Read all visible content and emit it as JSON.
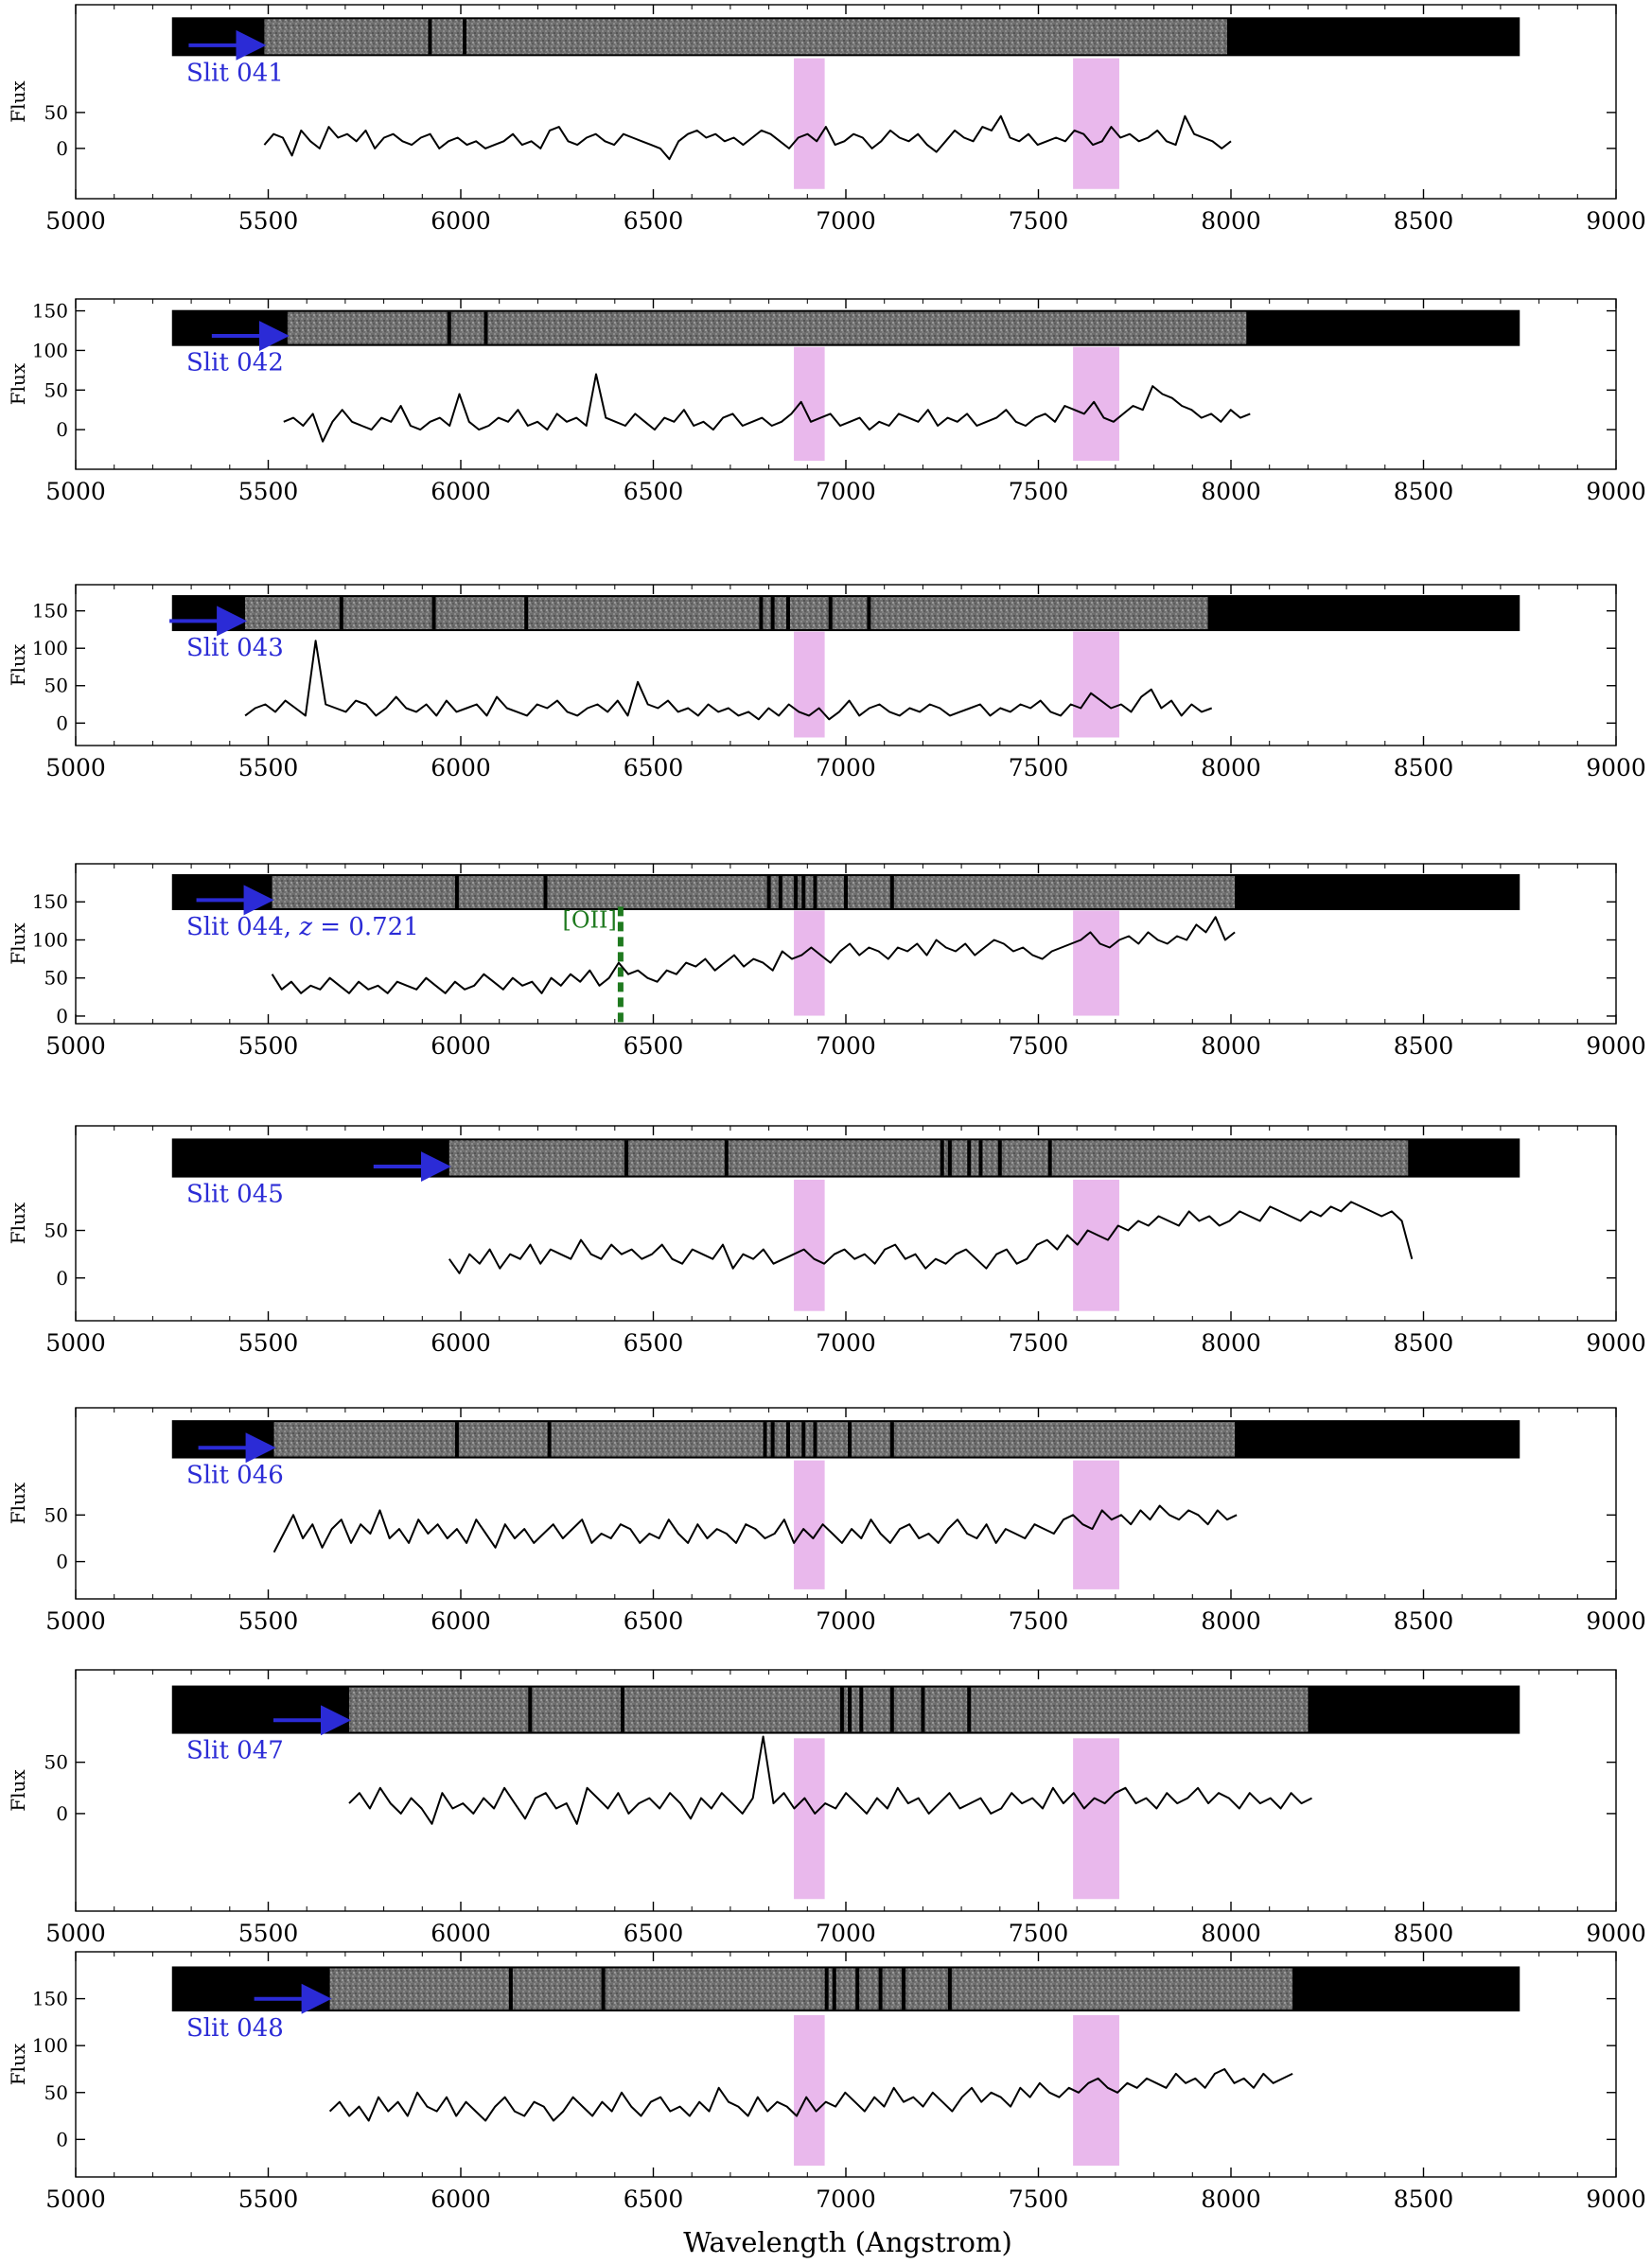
{
  "figure": {
    "xlabel": "Wavelength (Angstrom)",
    "ylabel": "Flux"
  },
  "chart_data": {
    "type": "line",
    "x_range": [
      5000,
      9000
    ],
    "x_ticks": [
      5000,
      5500,
      6000,
      6500,
      7000,
      7500,
      8000,
      8500,
      9000
    ],
    "xlabel": "Wavelength (Angstrom)",
    "ylabel": "Flux",
    "shaded_bands": [
      [
        6865,
        6945
      ],
      [
        7590,
        7710
      ]
    ],
    "band_color": "#e9b8ec",
    "line_color": "#000000",
    "label_color": "#2b2bd6",
    "annotation_color": "#1f7a1f",
    "panels": [
      {
        "label": "Slit 041",
        "x_start": 5490,
        "x_end": 8000,
        "y_range": [
          -70,
          200
        ],
        "y_ticks": [
          0,
          50
        ],
        "image_start": 5490,
        "image_end": 7990,
        "dark_columns": [
          5920,
          6010
        ],
        "spectrum": [
          5,
          20,
          15,
          -10,
          25,
          10,
          0,
          30,
          15,
          20,
          10,
          25,
          0,
          15,
          20,
          10,
          5,
          15,
          20,
          0,
          10,
          15,
          5,
          10,
          0,
          5,
          10,
          20,
          5,
          10,
          0,
          25,
          30,
          10,
          5,
          15,
          20,
          10,
          5,
          20,
          15,
          10,
          5,
          0,
          -15,
          10,
          20,
          25,
          15,
          20,
          10,
          15,
          5,
          15,
          25,
          20,
          10,
          0,
          15,
          20,
          10,
          30,
          5,
          10,
          20,
          15,
          0,
          10,
          25,
          15,
          10,
          20,
          5,
          -5,
          10,
          25,
          15,
          10,
          30,
          25,
          45,
          15,
          10,
          20,
          5,
          10,
          15,
          10,
          25,
          20,
          5,
          10,
          30,
          15,
          20,
          10,
          15,
          25,
          10,
          5,
          45,
          20,
          15,
          10,
          0,
          10
        ]
      },
      {
        "label": "Slit 042",
        "x_start": 5540,
        "x_end": 8050,
        "y_range": [
          -50,
          165
        ],
        "y_ticks": [
          0,
          50,
          100,
          150
        ],
        "image_start": 5550,
        "image_end": 8040,
        "dark_columns": [
          5970,
          6065
        ],
        "spectrum": [
          10,
          15,
          5,
          20,
          -15,
          10,
          25,
          10,
          5,
          0,
          15,
          10,
          30,
          5,
          0,
          10,
          15,
          5,
          45,
          10,
          0,
          5,
          15,
          10,
          25,
          5,
          10,
          0,
          20,
          10,
          15,
          5,
          70,
          15,
          10,
          5,
          20,
          10,
          0,
          15,
          10,
          25,
          5,
          10,
          0,
          15,
          20,
          5,
          10,
          15,
          5,
          10,
          20,
          35,
          10,
          15,
          20,
          5,
          10,
          15,
          0,
          10,
          5,
          20,
          15,
          10,
          25,
          5,
          15,
          10,
          20,
          5,
          10,
          15,
          25,
          10,
          5,
          15,
          20,
          10,
          30,
          25,
          20,
          35,
          15,
          10,
          20,
          30,
          25,
          55,
          45,
          40,
          30,
          25,
          15,
          20,
          10,
          25,
          15,
          20
        ]
      },
      {
        "label": "Slit 043",
        "x_start": 5440,
        "x_end": 7950,
        "y_range": [
          -30,
          185
        ],
        "y_ticks": [
          0,
          50,
          100,
          150
        ],
        "image_start": 5440,
        "image_end": 7940,
        "dark_columns": [
          5690,
          5930,
          6170,
          6780,
          6810,
          6850,
          6960,
          7060
        ],
        "spectrum": [
          10,
          20,
          25,
          15,
          30,
          20,
          10,
          110,
          25,
          20,
          15,
          30,
          25,
          10,
          20,
          35,
          20,
          15,
          25,
          10,
          30,
          15,
          20,
          25,
          10,
          35,
          20,
          15,
          10,
          25,
          20,
          30,
          15,
          10,
          20,
          25,
          15,
          30,
          10,
          55,
          25,
          20,
          30,
          15,
          20,
          10,
          25,
          15,
          20,
          10,
          15,
          5,
          20,
          10,
          25,
          15,
          10,
          20,
          5,
          15,
          30,
          10,
          20,
          25,
          15,
          10,
          20,
          15,
          25,
          20,
          10,
          15,
          20,
          25,
          10,
          20,
          15,
          25,
          20,
          30,
          15,
          10,
          25,
          20,
          40,
          30,
          20,
          25,
          15,
          35,
          45,
          20,
          30,
          10,
          25,
          15,
          20
        ]
      },
      {
        "label": "Slit 044, ",
        "z_label": "z",
        "z_value": " = 0.721",
        "x_start": 5510,
        "x_end": 8010,
        "y_range": [
          -10,
          200
        ],
        "y_ticks": [
          0,
          50,
          100,
          150
        ],
        "image_start": 5510,
        "image_end": 8010,
        "dark_columns": [
          5990,
          6220,
          6800,
          6830,
          6870,
          6890,
          6920,
          7000,
          7120
        ],
        "oii_line": 6415,
        "oii_label": "[OII]",
        "spectrum": [
          55,
          35,
          45,
          30,
          40,
          35,
          50,
          40,
          30,
          45,
          35,
          40,
          30,
          45,
          40,
          35,
          50,
          40,
          30,
          45,
          35,
          40,
          55,
          45,
          35,
          50,
          40,
          45,
          30,
          50,
          40,
          55,
          45,
          60,
          40,
          50,
          70,
          55,
          60,
          50,
          45,
          60,
          55,
          70,
          65,
          75,
          60,
          70,
          80,
          65,
          75,
          70,
          60,
          85,
          75,
          80,
          90,
          80,
          70,
          85,
          95,
          80,
          90,
          85,
          75,
          90,
          85,
          95,
          80,
          100,
          90,
          85,
          95,
          80,
          90,
          100,
          95,
          85,
          90,
          80,
          75,
          85,
          90,
          95,
          100,
          110,
          95,
          90,
          100,
          105,
          95,
          110,
          100,
          95,
          105,
          100,
          120,
          110,
          130,
          100,
          110
        ]
      },
      {
        "label": "Slit 045",
        "x_start": 5970,
        "x_end": 8470,
        "y_range": [
          -45,
          160
        ],
        "y_ticks": [
          0,
          50
        ],
        "image_start": 5970,
        "image_end": 8460,
        "dark_columns": [
          6430,
          6690,
          7250,
          7270,
          7320,
          7350,
          7400,
          7530
        ],
        "spectrum": [
          20,
          5,
          25,
          15,
          30,
          10,
          25,
          20,
          35,
          15,
          30,
          25,
          20,
          40,
          25,
          20,
          35,
          25,
          30,
          20,
          25,
          35,
          20,
          15,
          30,
          25,
          20,
          35,
          10,
          25,
          20,
          30,
          15,
          20,
          25,
          30,
          20,
          15,
          25,
          30,
          20,
          25,
          15,
          30,
          35,
          20,
          25,
          10,
          20,
          15,
          25,
          30,
          20,
          10,
          25,
          30,
          15,
          20,
          35,
          40,
          30,
          45,
          35,
          50,
          45,
          40,
          55,
          50,
          60,
          55,
          65,
          60,
          55,
          70,
          60,
          65,
          55,
          60,
          70,
          65,
          60,
          75,
          70,
          65,
          60,
          70,
          65,
          75,
          70,
          80,
          75,
          70,
          65,
          70,
          60,
          20
        ]
      },
      {
        "label": "Slit 046",
        "x_start": 5515,
        "x_end": 8015,
        "y_range": [
          -40,
          165
        ],
        "y_ticks": [
          0,
          50
        ],
        "image_start": 5515,
        "image_end": 8010,
        "dark_columns": [
          5990,
          6230,
          6790,
          6810,
          6850,
          6890,
          6920,
          7010,
          7120
        ],
        "spectrum": [
          10,
          30,
          50,
          25,
          40,
          15,
          35,
          45,
          20,
          40,
          30,
          55,
          25,
          35,
          20,
          45,
          30,
          40,
          25,
          35,
          20,
          45,
          30,
          15,
          40,
          25,
          35,
          20,
          30,
          40,
          25,
          35,
          45,
          20,
          30,
          25,
          40,
          35,
          20,
          30,
          25,
          45,
          30,
          20,
          40,
          25,
          35,
          30,
          20,
          40,
          35,
          25,
          30,
          45,
          20,
          35,
          25,
          40,
          30,
          20,
          35,
          25,
          45,
          30,
          20,
          35,
          40,
          25,
          30,
          20,
          35,
          45,
          30,
          25,
          40,
          20,
          35,
          30,
          25,
          40,
          35,
          30,
          45,
          50,
          40,
          35,
          55,
          45,
          50,
          40,
          55,
          45,
          60,
          50,
          45,
          55,
          50,
          40,
          55,
          45,
          50
        ]
      },
      {
        "label": "Slit 047",
        "x_start": 5710,
        "x_end": 8210,
        "y_range": [
          -95,
          140
        ],
        "y_ticks": [
          0,
          50
        ],
        "image_start": 5710,
        "image_end": 8200,
        "dark_columns": [
          6180,
          6420,
          6990,
          7010,
          7040,
          7120,
          7200,
          7320
        ],
        "spectrum": [
          10,
          20,
          5,
          25,
          10,
          0,
          15,
          5,
          -10,
          20,
          5,
          10,
          0,
          15,
          5,
          25,
          10,
          -5,
          15,
          20,
          5,
          10,
          -10,
          25,
          15,
          5,
          20,
          0,
          10,
          15,
          5,
          20,
          10,
          -5,
          15,
          5,
          20,
          10,
          0,
          15,
          75,
          10,
          20,
          5,
          15,
          0,
          10,
          5,
          20,
          10,
          0,
          15,
          5,
          25,
          10,
          15,
          0,
          10,
          20,
          5,
          10,
          15,
          0,
          5,
          20,
          10,
          15,
          5,
          25,
          10,
          20,
          5,
          15,
          10,
          20,
          25,
          10,
          15,
          5,
          20,
          10,
          15,
          25,
          10,
          20,
          15,
          5,
          20,
          10,
          15,
          5,
          20,
          10,
          15
        ]
      },
      {
        "label": "Slit 048",
        "x_start": 5660,
        "x_end": 8160,
        "y_range": [
          -40,
          200
        ],
        "y_ticks": [
          0,
          50,
          100,
          150
        ],
        "image_start": 5660,
        "image_end": 8160,
        "dark_columns": [
          6130,
          6370,
          6950,
          6970,
          7030,
          7090,
          7150,
          7270
        ],
        "spectrum": [
          30,
          40,
          25,
          35,
          20,
          45,
          30,
          40,
          25,
          50,
          35,
          30,
          45,
          25,
          40,
          30,
          20,
          35,
          45,
          30,
          25,
          40,
          35,
          20,
          30,
          45,
          35,
          25,
          40,
          30,
          50,
          35,
          25,
          40,
          45,
          30,
          35,
          25,
          40,
          30,
          55,
          40,
          35,
          25,
          45,
          30,
          40,
          35,
          25,
          45,
          30,
          40,
          35,
          50,
          40,
          30,
          45,
          35,
          55,
          40,
          45,
          35,
          50,
          40,
          30,
          45,
          55,
          40,
          50,
          45,
          35,
          55,
          45,
          60,
          50,
          45,
          55,
          50,
          60,
          65,
          55,
          50,
          60,
          55,
          65,
          60,
          55,
          70,
          60,
          65,
          55,
          70,
          75,
          60,
          65,
          55,
          70,
          60,
          65,
          70
        ]
      }
    ]
  }
}
